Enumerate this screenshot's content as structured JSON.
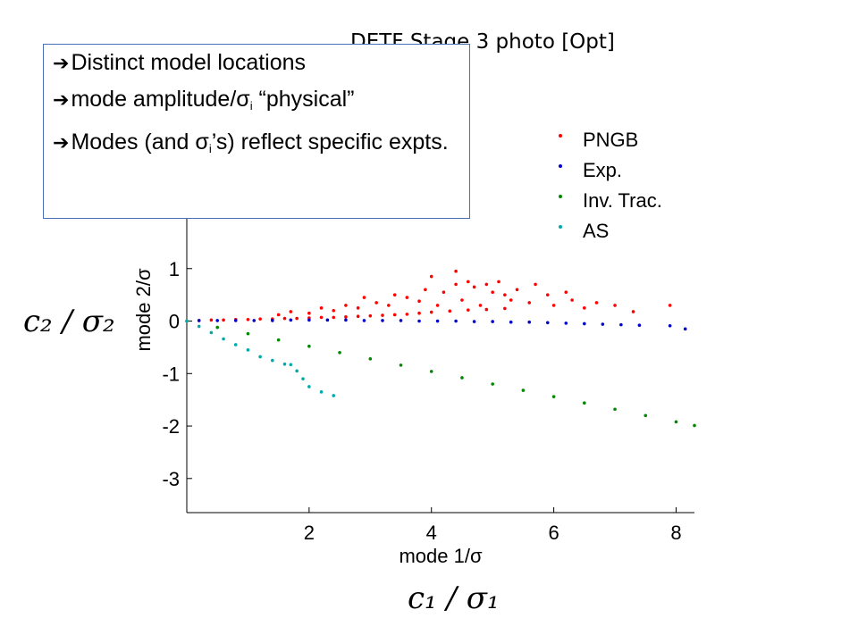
{
  "slide": {
    "title": "DETF Stage 3 photo [Opt]",
    "notes": [
      {
        "text": "Distinct model locations"
      },
      {
        "pre": "mode amplitude/σ",
        "sub": "i",
        "post": " “physical”"
      },
      {
        "pre": "Modes (and σ",
        "sub": "i",
        "post": "’s) reflect specific expts."
      }
    ],
    "bullet_icon": "right-arrow-icon",
    "left_label": "c₂ / σ₂",
    "bottom_label": "c₁ / σ₁"
  },
  "chart_data": {
    "type": "scatter",
    "title": "",
    "xlabel": "mode 1/σ",
    "ylabel": "mode 2/σ",
    "xlim": [
      0,
      8.3
    ],
    "ylim": [
      -3.65,
      2.0
    ],
    "xticks": [
      2,
      4,
      6,
      8
    ],
    "yticks": [
      1,
      0,
      -1,
      -2,
      -3
    ],
    "legend": {
      "placement": "top-right"
    },
    "series": [
      {
        "name": "PNGB",
        "color": "#ff0000",
        "points": [
          [
            0.2,
            0.01
          ],
          [
            0.4,
            0.02
          ],
          [
            0.6,
            0.02
          ],
          [
            0.8,
            0.03
          ],
          [
            1.0,
            0.03
          ],
          [
            1.2,
            0.04
          ],
          [
            1.4,
            0.04
          ],
          [
            1.6,
            0.05
          ],
          [
            1.8,
            0.05
          ],
          [
            2.0,
            0.06
          ],
          [
            2.2,
            0.07
          ],
          [
            2.4,
            0.07
          ],
          [
            2.6,
            0.08
          ],
          [
            2.8,
            0.09
          ],
          [
            3.0,
            0.1
          ],
          [
            3.2,
            0.11
          ],
          [
            3.4,
            0.12
          ],
          [
            3.6,
            0.13
          ],
          [
            3.8,
            0.15
          ],
          [
            4.0,
            0.17
          ],
          [
            4.3,
            0.19
          ],
          [
            4.6,
            0.21
          ],
          [
            4.9,
            0.22
          ],
          [
            5.2,
            0.24
          ],
          [
            1.5,
            0.12
          ],
          [
            1.7,
            0.18
          ],
          [
            2.0,
            0.15
          ],
          [
            2.2,
            0.25
          ],
          [
            2.4,
            0.2
          ],
          [
            2.6,
            0.3
          ],
          [
            2.8,
            0.25
          ],
          [
            2.9,
            0.45
          ],
          [
            3.1,
            0.35
          ],
          [
            3.3,
            0.3
          ],
          [
            3.4,
            0.5
          ],
          [
            3.6,
            0.45
          ],
          [
            3.8,
            0.38
          ],
          [
            3.9,
            0.6
          ],
          [
            4.1,
            0.3
          ],
          [
            4.2,
            0.55
          ],
          [
            4.4,
            0.7
          ],
          [
            4.5,
            0.4
          ],
          [
            4.7,
            0.65
          ],
          [
            4.8,
            0.3
          ],
          [
            5.0,
            0.55
          ],
          [
            5.1,
            0.75
          ],
          [
            5.3,
            0.4
          ],
          [
            5.4,
            0.6
          ],
          [
            5.6,
            0.35
          ],
          [
            5.7,
            0.7
          ],
          [
            5.9,
            0.5
          ],
          [
            6.0,
            0.3
          ],
          [
            6.2,
            0.55
          ],
          [
            6.3,
            0.4
          ],
          [
            6.5,
            0.25
          ],
          [
            6.7,
            0.35
          ],
          [
            7.0,
            0.3
          ],
          [
            7.3,
            0.18
          ],
          [
            7.9,
            0.3
          ],
          [
            4.0,
            0.85
          ],
          [
            4.4,
            0.95
          ],
          [
            4.6,
            0.75
          ],
          [
            4.9,
            0.7
          ],
          [
            5.2,
            0.5
          ]
        ]
      },
      {
        "name": "Exp.",
        "color": "#0000cc",
        "points": [
          [
            0.2,
            0.01
          ],
          [
            0.5,
            0.01
          ],
          [
            0.8,
            0.01
          ],
          [
            1.1,
            0.01
          ],
          [
            1.4,
            0.01
          ],
          [
            1.7,
            0.02
          ],
          [
            2.0,
            0.02
          ],
          [
            2.3,
            0.02
          ],
          [
            2.6,
            0.02
          ],
          [
            2.9,
            0.01
          ],
          [
            3.2,
            0.01
          ],
          [
            3.5,
            0.01
          ],
          [
            3.8,
            0.0
          ],
          [
            4.1,
            0.0
          ],
          [
            4.4,
            0.0
          ],
          [
            4.7,
            -0.01
          ],
          [
            5.0,
            -0.01
          ],
          [
            5.3,
            -0.02
          ],
          [
            5.6,
            -0.02
          ],
          [
            5.9,
            -0.03
          ],
          [
            6.2,
            -0.04
          ],
          [
            6.5,
            -0.05
          ],
          [
            6.8,
            -0.06
          ],
          [
            7.1,
            -0.07
          ],
          [
            7.4,
            -0.08
          ],
          [
            7.9,
            -0.09
          ],
          [
            8.15,
            -0.15
          ]
        ]
      },
      {
        "name": "Inv. Trac.",
        "color": "#008800",
        "points": [
          [
            0.0,
            0.0
          ],
          [
            0.5,
            -0.12
          ],
          [
            1.0,
            -0.24
          ],
          [
            1.5,
            -0.36
          ],
          [
            2.0,
            -0.48
          ],
          [
            2.5,
            -0.6
          ],
          [
            3.0,
            -0.72
          ],
          [
            3.5,
            -0.84
          ],
          [
            4.0,
            -0.96
          ],
          [
            4.5,
            -1.08
          ],
          [
            5.0,
            -1.2
          ],
          [
            5.5,
            -1.32
          ],
          [
            6.0,
            -1.44
          ],
          [
            6.5,
            -1.56
          ],
          [
            7.0,
            -1.68
          ],
          [
            7.5,
            -1.8
          ],
          [
            8.0,
            -1.92
          ],
          [
            8.3,
            -1.99
          ]
        ]
      },
      {
        "name": "AS",
        "color": "#00aaaa",
        "points": [
          [
            0.0,
            0.0
          ],
          [
            0.2,
            -0.1
          ],
          [
            0.4,
            -0.22
          ],
          [
            0.6,
            -0.34
          ],
          [
            0.8,
            -0.45
          ],
          [
            1.0,
            -0.55
          ],
          [
            1.2,
            -0.68
          ],
          [
            1.4,
            -0.75
          ],
          [
            1.6,
            -0.82
          ],
          [
            1.7,
            -0.83
          ],
          [
            1.8,
            -0.95
          ],
          [
            1.9,
            -1.1
          ],
          [
            2.0,
            -1.25
          ],
          [
            2.2,
            -1.35
          ],
          [
            2.4,
            -1.42
          ]
        ]
      }
    ]
  }
}
